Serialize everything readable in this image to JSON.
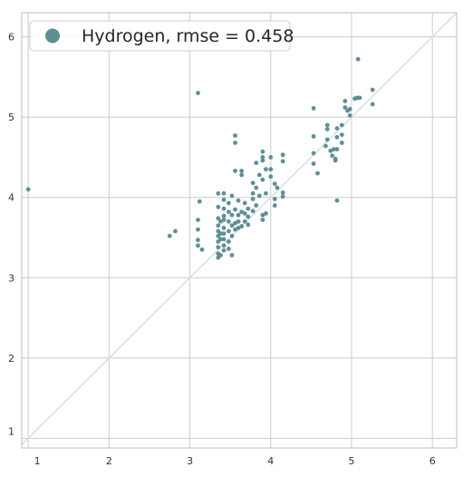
{
  "chart_data": {
    "type": "scatter",
    "title": "",
    "xlabel": "",
    "ylabel": "",
    "xlim": [
      0.92,
      6.3
    ],
    "ylim": [
      0.88,
      6.3
    ],
    "xticks": [
      1,
      2,
      3,
      4,
      5,
      6
    ],
    "yticks": [
      1,
      2,
      3,
      4,
      5,
      6
    ],
    "grid": true,
    "legend_position": "top-left",
    "diagonal_line": true,
    "colors": {
      "points": "#5f8f94",
      "diagonal": "#d3e3e6",
      "grid": "#cccccc",
      "frame": "#bdbdbd"
    },
    "series": [
      {
        "name": "Hydrogen, rmse = 0.458",
        "points": [
          [
            1.0,
            4.1
          ],
          [
            2.75,
            3.52
          ],
          [
            2.82,
            3.58
          ],
          [
            3.1,
            5.3
          ],
          [
            3.1,
            3.72
          ],
          [
            3.1,
            3.6
          ],
          [
            3.1,
            3.47
          ],
          [
            3.1,
            3.4
          ],
          [
            3.12,
            3.95
          ],
          [
            3.15,
            3.35
          ],
          [
            3.35,
            4.05
          ],
          [
            3.35,
            3.88
          ],
          [
            3.35,
            3.74
          ],
          [
            3.35,
            3.65
          ],
          [
            3.35,
            3.58
          ],
          [
            3.35,
            3.52
          ],
          [
            3.35,
            3.45
          ],
          [
            3.35,
            3.38
          ],
          [
            3.35,
            3.3
          ],
          [
            3.35,
            3.25
          ],
          [
            3.38,
            3.7
          ],
          [
            3.38,
            3.55
          ],
          [
            3.38,
            3.48
          ],
          [
            3.38,
            3.28
          ],
          [
            3.42,
            4.05
          ],
          [
            3.42,
            3.97
          ],
          [
            3.42,
            3.86
          ],
          [
            3.42,
            3.77
          ],
          [
            3.42,
            3.72
          ],
          [
            3.42,
            3.62
          ],
          [
            3.42,
            3.55
          ],
          [
            3.42,
            3.48
          ],
          [
            3.42,
            3.4
          ],
          [
            3.42,
            3.34
          ],
          [
            3.48,
            3.93
          ],
          [
            3.48,
            3.82
          ],
          [
            3.48,
            3.7
          ],
          [
            3.48,
            3.58
          ],
          [
            3.48,
            3.45
          ],
          [
            3.48,
            3.36
          ],
          [
            3.52,
            4.02
          ],
          [
            3.52,
            3.78
          ],
          [
            3.52,
            3.65
          ],
          [
            3.52,
            3.52
          ],
          [
            3.52,
            3.28
          ],
          [
            3.56,
            4.77
          ],
          [
            3.56,
            4.68
          ],
          [
            3.56,
            4.33
          ],
          [
            3.56,
            3.85
          ],
          [
            3.56,
            3.68
          ],
          [
            3.56,
            3.6
          ],
          [
            3.6,
            3.96
          ],
          [
            3.6,
            3.78
          ],
          [
            3.6,
            3.7
          ],
          [
            3.6,
            3.62
          ],
          [
            3.64,
            4.33
          ],
          [
            3.64,
            4.28
          ],
          [
            3.64,
            3.82
          ],
          [
            3.64,
            3.64
          ],
          [
            3.68,
            3.93
          ],
          [
            3.68,
            3.8
          ],
          [
            3.68,
            3.7
          ],
          [
            3.72,
            3.86
          ],
          [
            3.72,
            3.76
          ],
          [
            3.72,
            3.66
          ],
          [
            3.78,
            4.18
          ],
          [
            3.78,
            4.05
          ],
          [
            3.78,
            3.98
          ],
          [
            3.78,
            3.83
          ],
          [
            3.82,
            4.43
          ],
          [
            3.82,
            4.12
          ],
          [
            3.82,
            3.9
          ],
          [
            3.86,
            4.28
          ],
          [
            3.86,
            4.02
          ],
          [
            3.9,
            4.57
          ],
          [
            3.9,
            4.5
          ],
          [
            3.9,
            4.46
          ],
          [
            3.9,
            4.22
          ],
          [
            3.9,
            3.78
          ],
          [
            3.9,
            3.72
          ],
          [
            3.94,
            4.35
          ],
          [
            3.94,
            4.05
          ],
          [
            3.94,
            3.8
          ],
          [
            4.0,
            4.5
          ],
          [
            4.0,
            4.35
          ],
          [
            4.0,
            4.26
          ],
          [
            4.05,
            4.17
          ],
          [
            4.05,
            3.98
          ],
          [
            4.05,
            3.9
          ],
          [
            4.08,
            4.12
          ],
          [
            4.15,
            4.53
          ],
          [
            4.15,
            4.45
          ],
          [
            4.15,
            4.06
          ],
          [
            4.15,
            4.01
          ],
          [
            4.53,
            5.11
          ],
          [
            4.53,
            4.76
          ],
          [
            4.53,
            4.55
          ],
          [
            4.53,
            4.42
          ],
          [
            4.58,
            4.3
          ],
          [
            4.68,
            4.64
          ],
          [
            4.7,
            4.9
          ],
          [
            4.7,
            4.85
          ],
          [
            4.7,
            4.72
          ],
          [
            4.74,
            4.58
          ],
          [
            4.76,
            4.52
          ],
          [
            4.78,
            4.6
          ],
          [
            4.8,
            4.48
          ],
          [
            4.8,
            4.46
          ],
          [
            4.82,
            4.86
          ],
          [
            4.82,
            4.75
          ],
          [
            4.82,
            4.6
          ],
          [
            4.82,
            3.96
          ],
          [
            4.88,
            4.9
          ],
          [
            4.88,
            4.78
          ],
          [
            4.88,
            4.68
          ],
          [
            4.92,
            5.2
          ],
          [
            4.92,
            5.12
          ],
          [
            4.95,
            5.08
          ],
          [
            4.98,
            5.1
          ],
          [
            4.98,
            5.02
          ],
          [
            5.04,
            5.23
          ],
          [
            5.07,
            5.24
          ],
          [
            5.1,
            5.24
          ],
          [
            5.08,
            5.72
          ],
          [
            5.26,
            5.34
          ],
          [
            5.26,
            5.16
          ]
        ]
      }
    ]
  }
}
